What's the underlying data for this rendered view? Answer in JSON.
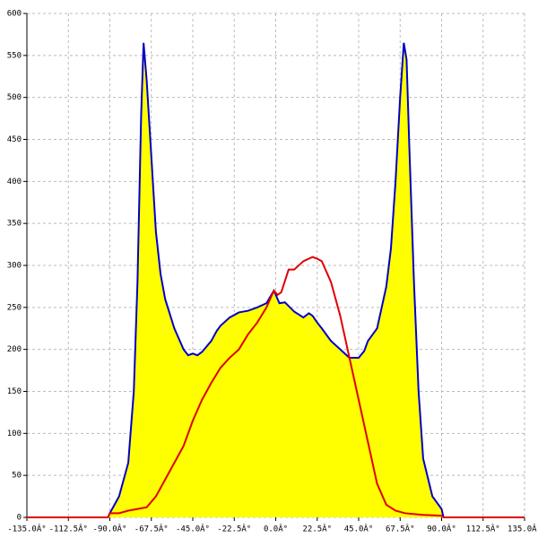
{
  "chart_data": {
    "type": "area",
    "xlim": [
      -135,
      135
    ],
    "ylim": [
      0,
      600
    ],
    "grid": true,
    "fill": "#ffff00",
    "xticks": [
      {
        "value": -135,
        "label": "-135.0Â°"
      },
      {
        "value": -112.5,
        "label": "-112.5Â°"
      },
      {
        "value": -90,
        "label": "-90.0Â°"
      },
      {
        "value": -67.5,
        "label": "-67.5Â°"
      },
      {
        "value": -45,
        "label": "-45.0Â°"
      },
      {
        "value": -22.5,
        "label": "-22.5Â°"
      },
      {
        "value": 0,
        "label": "0.0Â°"
      },
      {
        "value": 22.5,
        "label": "22.5Â°"
      },
      {
        "value": 45,
        "label": "45.0Â°"
      },
      {
        "value": 67.5,
        "label": "67.5Â°"
      },
      {
        "value": 90,
        "label": "90.0Â°"
      },
      {
        "value": 112.5,
        "label": "112.5Â°"
      },
      {
        "value": 135,
        "label": "135.0Â°"
      }
    ],
    "yticks": [
      0,
      50,
      100,
      150,
      200,
      250,
      300,
      350,
      400,
      450,
      500,
      550,
      600
    ],
    "series": [
      {
        "color": "#0000c8",
        "x": [
          -91,
          -90,
          -85,
          -80,
          -77,
          -75,
          -73,
          -71.7,
          -70,
          -67.5,
          -65,
          -62.5,
          -60,
          -55,
          -50,
          -47.5,
          -45,
          -42.5,
          -40,
          -35,
          -32,
          -30,
          -25,
          -20,
          -15,
          -10,
          -5,
          -1,
          0,
          2,
          5,
          10,
          15,
          18,
          20,
          22.5,
          25,
          30,
          35,
          40,
          45,
          48,
          50,
          55,
          60,
          62.5,
          65,
          67.5,
          69.5,
          71,
          72.5,
          75,
          77.5,
          80,
          85,
          90,
          91
        ],
        "values": [
          0,
          5,
          25,
          65,
          150,
          280,
          480,
          565,
          520,
          430,
          340,
          290,
          260,
          225,
          200,
          193,
          195,
          193,
          197,
          210,
          222,
          228,
          238,
          244,
          246,
          250,
          255,
          270,
          265,
          255,
          256,
          245,
          238,
          243,
          240,
          232,
          225,
          210,
          200,
          190,
          190,
          198,
          210,
          225,
          275,
          320,
          400,
          500,
          565,
          545,
          440,
          280,
          150,
          70,
          25,
          10,
          0
        ]
      },
      {
        "color": "#e00000",
        "x": [
          -135,
          -91,
          -90,
          -85,
          -80,
          -75,
          -70,
          -65,
          -60,
          -55,
          -50,
          -45,
          -40,
          -35,
          -30,
          -25,
          -20,
          -15,
          -10,
          -5,
          -1,
          1,
          3,
          7,
          10,
          15,
          20,
          22.5,
          25,
          30,
          35,
          40,
          45,
          50,
          55,
          60,
          65,
          70,
          80,
          90,
          91,
          135
        ],
        "values": [
          0,
          0,
          5,
          5,
          8,
          10,
          12,
          25,
          45,
          65,
          85,
          115,
          140,
          160,
          178,
          190,
          200,
          218,
          232,
          250,
          270,
          265,
          268,
          295,
          295,
          305,
          310,
          308,
          305,
          280,
          240,
          190,
          140,
          90,
          40,
          15,
          8,
          5,
          3,
          2,
          0,
          0
        ]
      }
    ]
  }
}
